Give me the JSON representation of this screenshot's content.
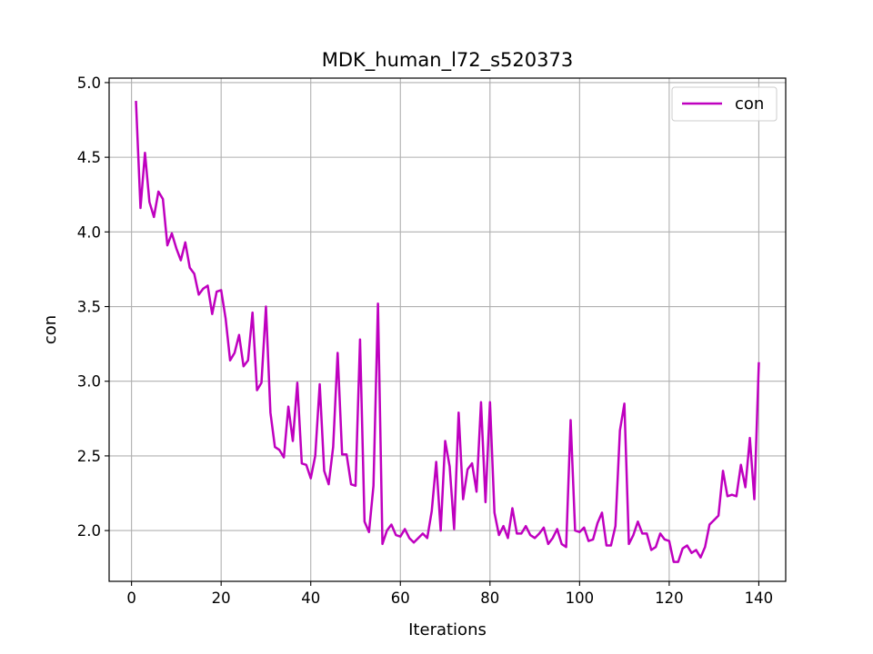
{
  "chart_data": {
    "type": "line",
    "title": "MDK_human_l72_s520373",
    "xlabel": "Iterations",
    "ylabel": "con",
    "xlim": [
      -5,
      146
    ],
    "ylim": [
      1.66,
      5.03
    ],
    "xticks": [
      0,
      20,
      40,
      60,
      80,
      100,
      120,
      140
    ],
    "yticks": [
      2.0,
      2.5,
      3.0,
      3.5,
      4.0,
      4.5,
      5.0
    ],
    "xtick_labels": [
      "0",
      "20",
      "40",
      "60",
      "80",
      "100",
      "120",
      "140"
    ],
    "ytick_labels": [
      "2.0",
      "2.5",
      "3.0",
      "3.5",
      "4.0",
      "4.5",
      "5.0"
    ],
    "grid": true,
    "legend": {
      "position": "top-right",
      "entries": [
        "con"
      ]
    },
    "series": [
      {
        "name": "con",
        "color": "#bf00bf",
        "x": [
          1,
          2,
          3,
          4,
          5,
          6,
          7,
          8,
          9,
          10,
          11,
          12,
          13,
          14,
          15,
          16,
          17,
          18,
          19,
          20,
          21,
          22,
          23,
          24,
          25,
          26,
          27,
          28,
          29,
          30,
          31,
          32,
          33,
          34,
          35,
          36,
          37,
          38,
          39,
          40,
          41,
          42,
          43,
          44,
          45,
          46,
          47,
          48,
          49,
          50,
          51,
          52,
          53,
          54,
          55,
          56,
          57,
          58,
          59,
          60,
          61,
          62,
          63,
          64,
          65,
          66,
          67,
          68,
          69,
          70,
          71,
          72,
          73,
          74,
          75,
          76,
          77,
          78,
          79,
          80,
          81,
          82,
          83,
          84,
          85,
          86,
          87,
          88,
          89,
          90,
          91,
          92,
          93,
          94,
          95,
          96,
          97,
          98,
          99,
          100,
          101,
          102,
          103,
          104,
          105,
          106,
          107,
          108,
          109,
          110,
          111,
          112,
          113,
          114,
          115,
          116,
          117,
          118,
          119,
          120,
          121,
          122,
          123,
          124,
          125,
          126,
          127,
          128,
          129,
          130,
          131,
          132,
          133,
          134,
          135,
          136,
          137,
          138,
          139,
          140
        ],
        "values": [
          4.87,
          4.16,
          4.53,
          4.2,
          4.1,
          4.27,
          4.22,
          3.91,
          3.99,
          3.89,
          3.81,
          3.93,
          3.76,
          3.72,
          3.58,
          3.62,
          3.64,
          3.45,
          3.6,
          3.61,
          3.42,
          3.14,
          3.19,
          3.31,
          3.1,
          3.14,
          3.46,
          2.94,
          2.99,
          3.5,
          2.79,
          2.56,
          2.54,
          2.49,
          2.83,
          2.6,
          2.99,
          2.45,
          2.44,
          2.35,
          2.5,
          2.98,
          2.4,
          2.31,
          2.56,
          3.19,
          2.51,
          2.51,
          2.31,
          2.3,
          3.28,
          2.06,
          1.99,
          2.3,
          3.52,
          1.91,
          2.0,
          2.04,
          1.97,
          1.96,
          2.01,
          1.95,
          1.92,
          1.95,
          1.98,
          1.95,
          2.13,
          2.46,
          2.0,
          2.6,
          2.43,
          2.01,
          2.79,
          2.21,
          2.41,
          2.45,
          2.26,
          2.86,
          2.19,
          2.86,
          2.12,
          1.97,
          2.03,
          1.95,
          2.15,
          1.98,
          1.98,
          2.03,
          1.97,
          1.95,
          1.98,
          2.02,
          1.91,
          1.95,
          2.01,
          1.91,
          1.89,
          2.74,
          2.0,
          1.99,
          2.02,
          1.93,
          1.94,
          2.05,
          2.12,
          1.9,
          1.9,
          2.03,
          2.67,
          2.85,
          1.91,
          1.97,
          2.06,
          1.98,
          1.98,
          1.87,
          1.89,
          1.98,
          1.94,
          1.93,
          1.79,
          1.79,
          1.88,
          1.9,
          1.85,
          1.87,
          1.82,
          1.89,
          2.04,
          2.07,
          2.1,
          2.4,
          2.23,
          2.24,
          2.23,
          2.44,
          2.29,
          2.62,
          2.21,
          3.12
        ]
      }
    ]
  }
}
